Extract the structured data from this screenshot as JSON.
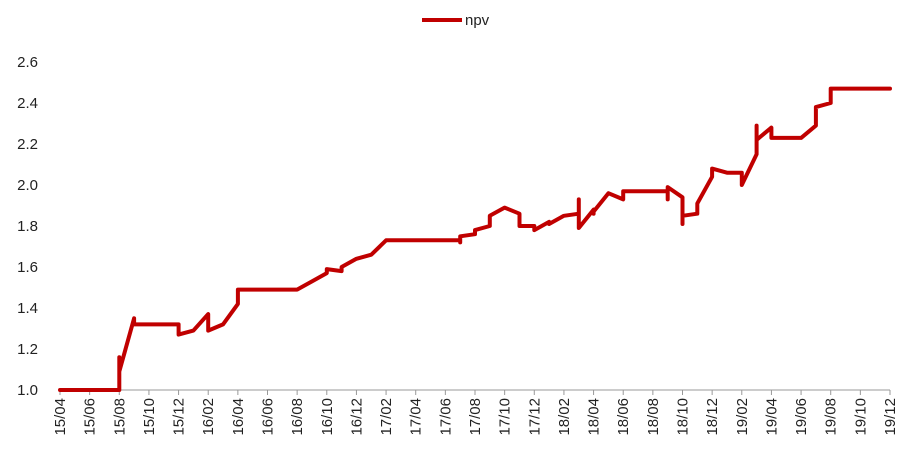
{
  "chart_data": {
    "type": "line",
    "title": "",
    "xlabel": "",
    "ylabel": "",
    "ylim": [
      1.0,
      2.6
    ],
    "yticks": [
      "1.0",
      "1.2",
      "1.4",
      "1.6",
      "1.8",
      "2.0",
      "2.2",
      "2.4",
      "2.6"
    ],
    "xticks": [
      "15/04",
      "15/06",
      "15/08",
      "15/10",
      "15/12",
      "16/02",
      "16/04",
      "16/06",
      "16/08",
      "16/10",
      "16/12",
      "17/02",
      "17/04",
      "17/06",
      "17/08",
      "17/10",
      "17/12",
      "18/02",
      "18/04",
      "18/06",
      "18/08",
      "18/10",
      "18/12",
      "19/02",
      "19/04",
      "19/06",
      "19/08",
      "19/10",
      "19/12"
    ],
    "grid": false,
    "legend_position": "top-center",
    "series": [
      {
        "name": "npv",
        "color": "#C00000",
        "x": [
          "2015-04",
          "2015-08",
          "2015-08",
          "2015-08",
          "2015-09",
          "2015-09",
          "2015-09",
          "2015-12",
          "2015-12",
          "2016-01",
          "2016-01",
          "2016-02",
          "2016-02",
          "2016-02",
          "2016-03",
          "2016-04",
          "2016-04",
          "2016-06",
          "2016-08",
          "2016-09",
          "2016-10",
          "2016-10",
          "2016-11",
          "2016-11",
          "2016-12",
          "2016-12",
          "2017-01",
          "2017-02",
          "2017-04",
          "2017-06",
          "2017-07",
          "2017-07",
          "2017-07",
          "2017-08",
          "2017-08",
          "2017-09",
          "2017-09",
          "2017-10",
          "2017-10",
          "2017-11",
          "2017-11",
          "2017-12",
          "2017-12",
          "2018-01",
          "2018-01",
          "2018-02",
          "2018-03",
          "2018-03",
          "2018-03",
          "2018-04",
          "2018-04",
          "2018-04",
          "2018-05",
          "2018-05",
          "2018-06",
          "2018-06",
          "2018-06",
          "2018-07",
          "2018-08",
          "2018-09",
          "2018-09",
          "2018-09",
          "2018-10",
          "2018-10",
          "2018-10",
          "2018-11",
          "2018-11",
          "2018-12",
          "2018-12",
          "2019-01",
          "2019-02",
          "2019-02",
          "2019-03",
          "2019-03",
          "2019-03",
          "2019-04",
          "2019-04",
          "2019-05",
          "2019-06",
          "2019-07",
          "2019-07",
          "2019-08",
          "2019-08",
          "2019-10",
          "2019-12"
        ],
        "values": [
          1.0,
          1.0,
          1.16,
          1.09,
          1.35,
          1.32,
          1.32,
          1.32,
          1.27,
          1.29,
          1.29,
          1.37,
          1.29,
          1.29,
          1.32,
          1.42,
          1.49,
          1.49,
          1.49,
          1.53,
          1.57,
          1.59,
          1.58,
          1.6,
          1.64,
          1.64,
          1.66,
          1.73,
          1.73,
          1.73,
          1.73,
          1.72,
          1.75,
          1.76,
          1.78,
          1.8,
          1.85,
          1.89,
          1.89,
          1.86,
          1.8,
          1.8,
          1.78,
          1.82,
          1.81,
          1.85,
          1.86,
          1.93,
          1.79,
          1.88,
          1.86,
          1.87,
          1.96,
          1.96,
          1.93,
          1.97,
          1.97,
          1.97,
          1.97,
          1.97,
          1.93,
          1.99,
          1.94,
          1.81,
          1.85,
          1.86,
          1.91,
          2.04,
          2.08,
          2.06,
          2.06,
          2.0,
          2.15,
          2.29,
          2.22,
          2.28,
          2.23,
          2.23,
          2.23,
          2.29,
          2.38,
          2.4,
          2.47,
          2.47,
          2.47
        ]
      }
    ]
  }
}
